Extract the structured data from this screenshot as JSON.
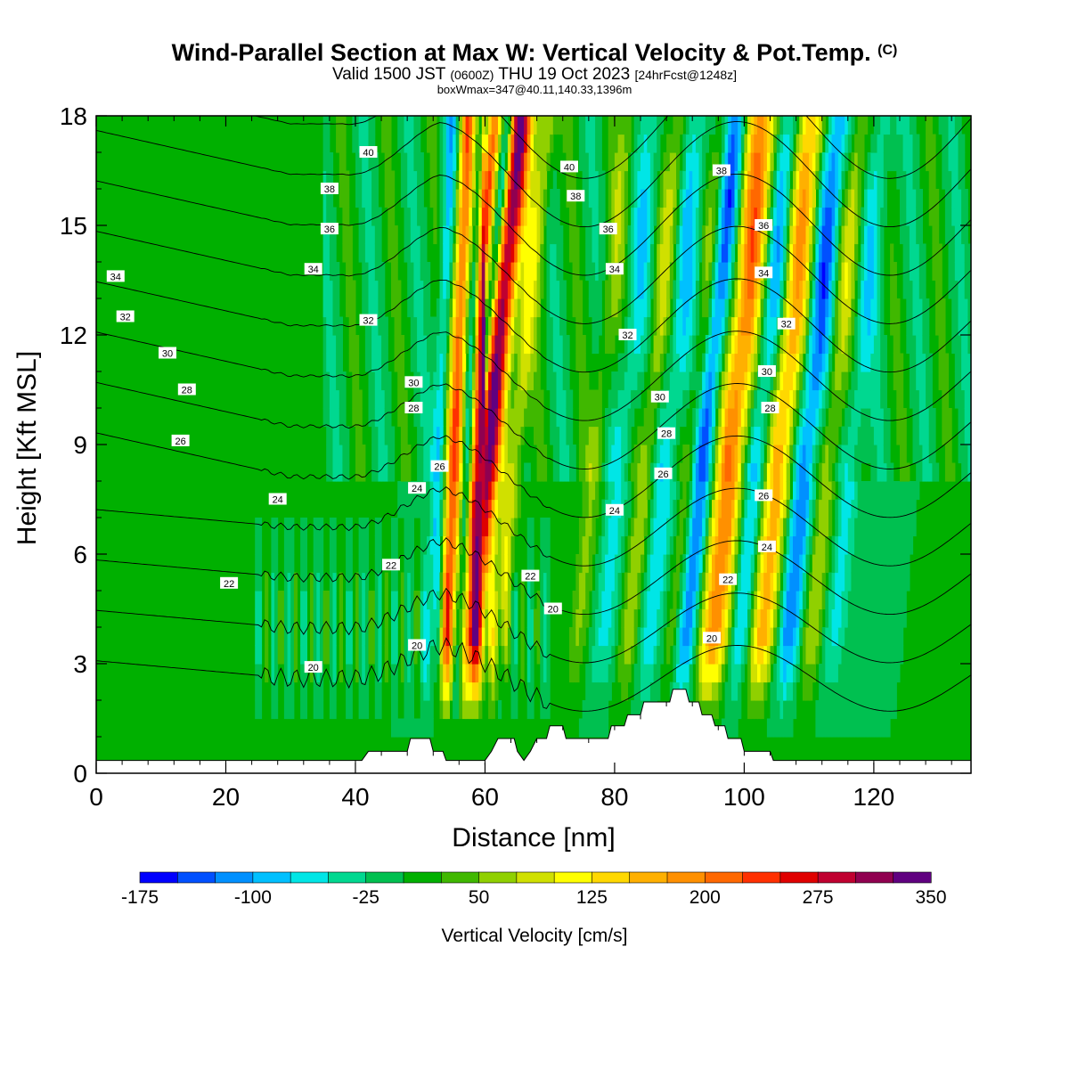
{
  "header": {
    "title_main": "Wind-Parallel Section at Max W: Vertical Velocity & Pot.Temp.",
    "title_mark": "(C)",
    "subtitle_a": "Valid 1500 JST",
    "subtitle_b": "(0600Z)",
    "subtitle_c": "THU 19 Oct 2023",
    "subtitle_d": "[24hrFcst@1248z]",
    "subtitle2": "boxWmax=347@40.11,140.33,1396m"
  },
  "chart_data": {
    "type": "heatmap",
    "xlabel": "Distance [nm]",
    "ylabel": "Height [Kft MSL]",
    "xlim": [
      0,
      135
    ],
    "ylim": [
      0,
      18
    ],
    "x_ticks": [
      0,
      20,
      40,
      60,
      80,
      100,
      120
    ],
    "y_ticks": [
      0,
      3,
      6,
      9,
      12,
      15,
      18
    ],
    "colorbar": {
      "label": "Vertical Velocity [cm/s]",
      "tick_labels": [
        "-175",
        "-100",
        "-25",
        "50",
        "125",
        "200",
        "275",
        "350"
      ],
      "colors": [
        "#0000ff",
        "#0050ff",
        "#0090ff",
        "#00c0ff",
        "#00e6e6",
        "#00d890",
        "#00c050",
        "#00b000",
        "#40b800",
        "#90d000",
        "#d0e000",
        "#ffff00",
        "#ffd800",
        "#ffb000",
        "#ff9000",
        "#ff6800",
        "#ff3000",
        "#e00000",
        "#c00030",
        "#900050",
        "#600080"
      ]
    },
    "updraft_columns": [
      {
        "x": 58.5,
        "w": 1.8,
        "peak_cm_s": 320
      },
      {
        "x": 54.5,
        "w": 1.2,
        "peak_cm_s": 220
      },
      {
        "x": 96,
        "w": 2.4,
        "peak_cm_s": 200
      },
      {
        "x": 103.5,
        "w": 2.2,
        "peak_cm_s": 170
      },
      {
        "x": 62.5,
        "w": 1.5,
        "peak_cm_s": 90
      },
      {
        "x": 83,
        "w": 1.6,
        "peak_cm_s": 80
      },
      {
        "x": 90,
        "w": 1.6,
        "peak_cm_s": 90
      },
      {
        "x": 111,
        "w": 1.8,
        "peak_cm_s": 80
      },
      {
        "x": 75,
        "w": 1.5,
        "peak_cm_s": 55
      }
    ],
    "downdraft_columns": [
      {
        "x": 91.5,
        "w": 1.8,
        "peak_cm_s": -160
      },
      {
        "x": 107.5,
        "w": 2.0,
        "peak_cm_s": -130
      },
      {
        "x": 100,
        "w": 1.8,
        "peak_cm_s": -100
      },
      {
        "x": 56.5,
        "w": 0.8,
        "peak_cm_s": -110
      },
      {
        "x": 52,
        "w": 1.0,
        "peak_cm_s": -80
      },
      {
        "x": 86,
        "w": 2.2,
        "peak_cm_s": -70
      },
      {
        "x": 79,
        "w": 1.8,
        "peak_cm_s": -60
      },
      {
        "x": 114.5,
        "w": 1.8,
        "peak_cm_s": -60
      }
    ],
    "terrain_kft": [
      [
        0,
        0.35
      ],
      [
        41,
        0.35
      ],
      [
        42,
        0.6
      ],
      [
        48,
        0.6
      ],
      [
        48.5,
        0.95
      ],
      [
        51.5,
        0.95
      ],
      [
        52,
        0.6
      ],
      [
        53.5,
        0.6
      ],
      [
        54,
        0.35
      ],
      [
        60,
        0.35
      ],
      [
        61,
        0.6
      ],
      [
        62,
        0.95
      ],
      [
        64.5,
        0.95
      ],
      [
        65,
        0.6
      ],
      [
        66,
        0.35
      ],
      [
        67,
        0.6
      ],
      [
        68,
        0.95
      ],
      [
        69.5,
        0.95
      ],
      [
        70,
        1.3
      ],
      [
        72,
        1.3
      ],
      [
        72.5,
        0.95
      ],
      [
        79,
        0.95
      ],
      [
        79.5,
        1.3
      ],
      [
        81.5,
        1.3
      ],
      [
        82,
        1.6
      ],
      [
        84,
        1.6
      ],
      [
        84.5,
        1.95
      ],
      [
        88.5,
        1.95
      ],
      [
        89,
        2.3
      ],
      [
        91,
        2.3
      ],
      [
        91.5,
        1.95
      ],
      [
        93,
        1.95
      ],
      [
        93.5,
        1.6
      ],
      [
        95,
        1.6
      ],
      [
        95.5,
        1.3
      ],
      [
        97,
        1.3
      ],
      [
        97.5,
        0.95
      ],
      [
        99.5,
        0.95
      ],
      [
        100,
        0.6
      ],
      [
        104,
        0.6
      ],
      [
        104.5,
        0.35
      ],
      [
        135,
        0.35
      ]
    ],
    "isentropes_c": [
      20,
      22,
      24,
      26,
      28,
      30,
      32,
      34,
      36,
      38,
      40
    ],
    "isentrope_labels": [
      {
        "x": 3,
        "y": 13.6,
        "v": "34"
      },
      {
        "x": 4.5,
        "y": 12.5,
        "v": "32"
      },
      {
        "x": 11,
        "y": 11.5,
        "v": "30"
      },
      {
        "x": 14,
        "y": 10.5,
        "v": "28"
      },
      {
        "x": 13,
        "y": 9.1,
        "v": "26"
      },
      {
        "x": 28,
        "y": 7.5,
        "v": "24"
      },
      {
        "x": 20.5,
        "y": 5.2,
        "v": "22"
      },
      {
        "x": 33.5,
        "y": 2.9,
        "v": "20"
      },
      {
        "x": 42,
        "y": 17.0,
        "v": "40"
      },
      {
        "x": 36,
        "y": 16.0,
        "v": "38"
      },
      {
        "x": 36,
        "y": 14.9,
        "v": "36"
      },
      {
        "x": 33.5,
        "y": 13.8,
        "v": "34"
      },
      {
        "x": 42,
        "y": 12.4,
        "v": "32"
      },
      {
        "x": 49,
        "y": 10.7,
        "v": "30"
      },
      {
        "x": 49,
        "y": 10.0,
        "v": "28"
      },
      {
        "x": 53,
        "y": 8.4,
        "v": "26"
      },
      {
        "x": 49.5,
        "y": 7.8,
        "v": "24"
      },
      {
        "x": 45.5,
        "y": 5.7,
        "v": "22"
      },
      {
        "x": 49.5,
        "y": 3.5,
        "v": "20"
      },
      {
        "x": 73,
        "y": 16.6,
        "v": "40"
      },
      {
        "x": 74,
        "y": 15.8,
        "v": "38"
      },
      {
        "x": 79,
        "y": 14.9,
        "v": "36"
      },
      {
        "x": 80,
        "y": 13.8,
        "v": "34"
      },
      {
        "x": 82,
        "y": 12.0,
        "v": "32"
      },
      {
        "x": 87,
        "y": 10.3,
        "v": "30"
      },
      {
        "x": 88,
        "y": 9.3,
        "v": "28"
      },
      {
        "x": 87.5,
        "y": 8.2,
        "v": "26"
      },
      {
        "x": 80,
        "y": 7.2,
        "v": "24"
      },
      {
        "x": 67,
        "y": 5.4,
        "v": "22"
      },
      {
        "x": 70.5,
        "y": 4.5,
        "v": "20"
      },
      {
        "x": 96.5,
        "y": 16.5,
        "v": "38"
      },
      {
        "x": 103,
        "y": 15.0,
        "v": "36"
      },
      {
        "x": 103,
        "y": 13.7,
        "v": "34"
      },
      {
        "x": 106.5,
        "y": 12.3,
        "v": "32"
      },
      {
        "x": 103.5,
        "y": 11.0,
        "v": "30"
      },
      {
        "x": 104,
        "y": 10.0,
        "v": "28"
      },
      {
        "x": 103,
        "y": 7.6,
        "v": "26"
      },
      {
        "x": 103.5,
        "y": 6.2,
        "v": "24"
      },
      {
        "x": 97.5,
        "y": 5.3,
        "v": "22"
      },
      {
        "x": 95,
        "y": 3.7,
        "v": "20"
      }
    ]
  }
}
